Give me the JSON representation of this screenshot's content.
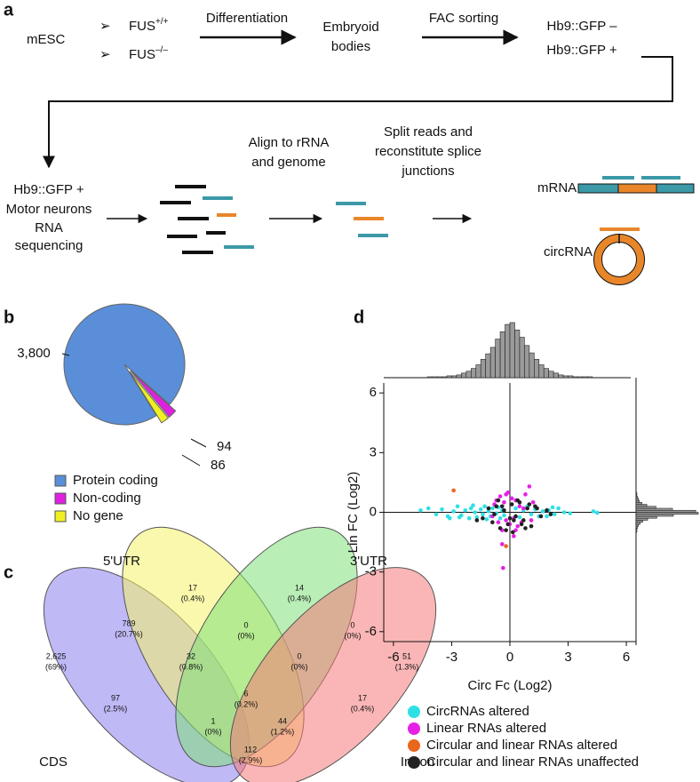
{
  "diagram": {
    "panel_label": "a",
    "start": "mESC",
    "genotypes": [
      {
        "gene": "FUS",
        "allele": "+/+"
      },
      {
        "gene": "FUS",
        "allele": "–/–"
      }
    ],
    "steps": [
      "Differentiation",
      "FAC sorting"
    ],
    "embryoid": [
      "Embryoid",
      "bodies"
    ],
    "sorted": [
      "Hb9::GFP –",
      "Hb9::GFP +"
    ],
    "sequencing": [
      "Hb9::GFP +",
      "Motor neurons",
      "RNA",
      "sequencing"
    ],
    "align": [
      "Align to rRNA",
      "and genome"
    ],
    "split": [
      "Split reads and",
      "reconstitute splice",
      "junctions"
    ],
    "mrna": "mRNA",
    "circrna": "circRNA"
  },
  "venn": {
    "panel_label": "c",
    "sets": [
      {
        "name": "CDS",
        "color": "#8a80ee",
        "text_color": "#2222cc"
      },
      {
        "name": "5'UTR",
        "color": "#f4f36a",
        "text_color": "#8a8a20"
      },
      {
        "name": "3'UTR",
        "color": "#80e07a",
        "text_color": "#1a991a"
      },
      {
        "name": "Intron",
        "color": "#f57a7a",
        "text_color": "#e02020"
      }
    ],
    "regions": [
      {
        "count": "17",
        "percent": "(0.4%)"
      },
      {
        "count": "14",
        "percent": "(0.4%)"
      },
      {
        "count": "789",
        "percent": "(20.7%)"
      },
      {
        "count": "0",
        "percent": "(0%)"
      },
      {
        "count": "0",
        "percent": "(0%)"
      },
      {
        "count": "2,625",
        "percent": "(69%)"
      },
      {
        "count": "32",
        "percent": "(0.8%)"
      },
      {
        "count": "0",
        "percent": "(0%)"
      },
      {
        "count": "51",
        "percent": "(1.3%)"
      },
      {
        "count": "6",
        "percent": "(0.2%)"
      },
      {
        "count": "97",
        "percent": "(2.5%)"
      },
      {
        "count": "17",
        "percent": "(0.4%)"
      },
      {
        "count": "1",
        "percent": "(0%)"
      },
      {
        "count": "44",
        "percent": "(1.2%)"
      },
      {
        "count": "112",
        "percent": "(2.9%)"
      }
    ]
  },
  "chart_data": [
    {
      "type": "pie",
      "panel_label": "b",
      "categories": [
        "Protein coding",
        "Non-coding",
        "No gene"
      ],
      "values": [
        3800,
        94,
        86
      ],
      "value_labels": [
        "3,800",
        "94",
        "86"
      ],
      "colors": [
        "#5a8ed8",
        "#e020e0",
        "#f0f020"
      ]
    },
    {
      "type": "scatter",
      "panel_label": "d",
      "xlabel": "Circ Fc (Log2)",
      "ylabel": "Lin FC (Log2)",
      "xlim": [
        -6.5,
        6.5
      ],
      "ylim": [
        -6.5,
        6.5
      ],
      "xticks": [
        -6,
        -3,
        0,
        3,
        6
      ],
      "yticks": [
        -6,
        -3,
        0,
        3,
        6
      ],
      "series": [
        {
          "name": "CircRNAs altered",
          "color": "#2ee0e6",
          "x": [
            -4.6,
            -4.2,
            -3.8,
            -3.5,
            -3.2,
            -2.9,
            -2.7,
            -2.5,
            -2.3,
            -2.1,
            -2.0,
            -1.8,
            -1.7,
            -1.5,
            -1.4,
            -1.3,
            -1.1,
            -1.0,
            -0.9,
            -0.7,
            -0.6,
            -0.5,
            -0.4,
            -0.3,
            0.3,
            0.5,
            0.7,
            0.9,
            1.1,
            1.3,
            1.5,
            1.7,
            2.0,
            2.3,
            2.5,
            2.8,
            3.1,
            4.3,
            4.5,
            -3.1,
            -2.6,
            -1.9,
            -1.2,
            2.2,
            1.9
          ],
          "values": [
            0.1,
            0.2,
            -0.1,
            0.15,
            -0.2,
            0.05,
            0.3,
            -0.15,
            0.1,
            -0.3,
            0.2,
            0,
            -0.25,
            0.15,
            -0.1,
            0.3,
            0.05,
            -0.2,
            0.2,
            -0.05,
            0.25,
            -0.3,
            0.1,
            -0.15,
            0.2,
            -0.25,
            0.1,
            0.3,
            -0.1,
            0.15,
            -0.2,
            0.05,
            0.1,
            -0.1,
            0.2,
            0,
            -0.05,
            0.05,
            -0.02,
            -0.3,
            -0.25,
            0.35,
            -0.35,
            0.25,
            -0.2
          ]
        },
        {
          "name": "Linear RNAs altered",
          "color": "#e620e6",
          "x": [
            -0.8,
            -0.6,
            -0.5,
            -0.4,
            -0.3,
            -0.2,
            -0.1,
            0,
            0.1,
            0.2,
            0.3,
            0.4,
            0.5,
            0.6,
            0.8,
            1.0,
            1.2,
            -0.9,
            -0.4,
            0.2,
            -0.35,
            1.1,
            0.7,
            -0.7,
            -0.2,
            0.3
          ],
          "values": [
            0.4,
            -0.5,
            0.8,
            -0.9,
            0.5,
            -0.4,
            1.0,
            -0.6,
            0.7,
            -0.3,
            0.6,
            -0.7,
            0.3,
            -0.5,
            0.9,
            1.3,
            0.5,
            -0.2,
            -1.6,
            -1.2,
            -2.8,
            -0.4,
            0.2,
            0.6,
            0.9,
            -0.9
          ]
        },
        {
          "name": "Circular and linear RNAs altered",
          "color": "#e8671a",
          "x": [
            -2.9,
            -0.2
          ],
          "values": [
            1.1,
            -1.7
          ]
        },
        {
          "name": "Circular and linear RNAs unaffected",
          "color": "#222222",
          "x": [
            -1.4,
            -1.1,
            -0.9,
            -0.7,
            -0.5,
            -0.3,
            -0.1,
            0.1,
            0.3,
            0.5,
            0.7,
            0.9,
            1.1,
            1.3,
            1.6,
            1.9,
            -0.6,
            -0.2,
            0.2,
            0.6,
            1.0,
            -0.8,
            0.4,
            0.0,
            -0.4,
            0.8,
            1.4,
            -1.7,
            2.1,
            0.15
          ],
          "values": [
            -0.3,
            0.2,
            -0.5,
            0.3,
            -0.8,
            0.1,
            -0.6,
            0.4,
            -0.2,
            0.5,
            -0.4,
            0.2,
            -0.7,
            0.3,
            -0.2,
            0.1,
            0.6,
            -0.9,
            -0.4,
            -0.6,
            0.4,
            -0.1,
            0.6,
            -0.3,
            0.3,
            -0.8,
            0.2,
            -0.4,
            -0.1,
            -1.0
          ]
        }
      ]
    },
    {
      "type": "histogram",
      "orientation": "vertical",
      "color": "#9a9a9a",
      "bins": [
        -4.5,
        -4.25,
        -4,
        -3.75,
        -3.5,
        -3.25,
        -3,
        -2.75,
        -2.5,
        -2.25,
        -2,
        -1.75,
        -1.5,
        -1.25,
        -1,
        -0.75,
        -0.5,
        -0.25,
        0,
        0.25,
        0.5,
        0.75,
        1,
        1.25,
        1.5,
        1.75,
        2,
        2.25,
        2.5,
        2.75,
        3,
        3.25,
        3.5,
        3.75,
        4,
        4.25,
        4.5
      ],
      "values": [
        0,
        1,
        1,
        1,
        1,
        2,
        2,
        3,
        5,
        7,
        10,
        14,
        20,
        26,
        33,
        42,
        50,
        58,
        60,
        52,
        44,
        35,
        27,
        20,
        14,
        10,
        7,
        5,
        3,
        2,
        2,
        1,
        1,
        1,
        1,
        0
      ]
    },
    {
      "type": "histogram",
      "orientation": "horizontal",
      "color": "#9a9a9a",
      "bins": [
        -1,
        -0.9,
        -0.8,
        -0.7,
        -0.6,
        -0.5,
        -0.4,
        -0.3,
        -0.2,
        -0.1,
        0,
        0.1,
        0.2,
        0.3,
        0.4,
        0.5,
        0.6,
        0.7,
        0.8,
        0.9,
        1
      ],
      "values": [
        1,
        1,
        2,
        3,
        5,
        8,
        14,
        25,
        45,
        75,
        72,
        44,
        24,
        13,
        7,
        4,
        3,
        2,
        1,
        1
      ]
    }
  ]
}
